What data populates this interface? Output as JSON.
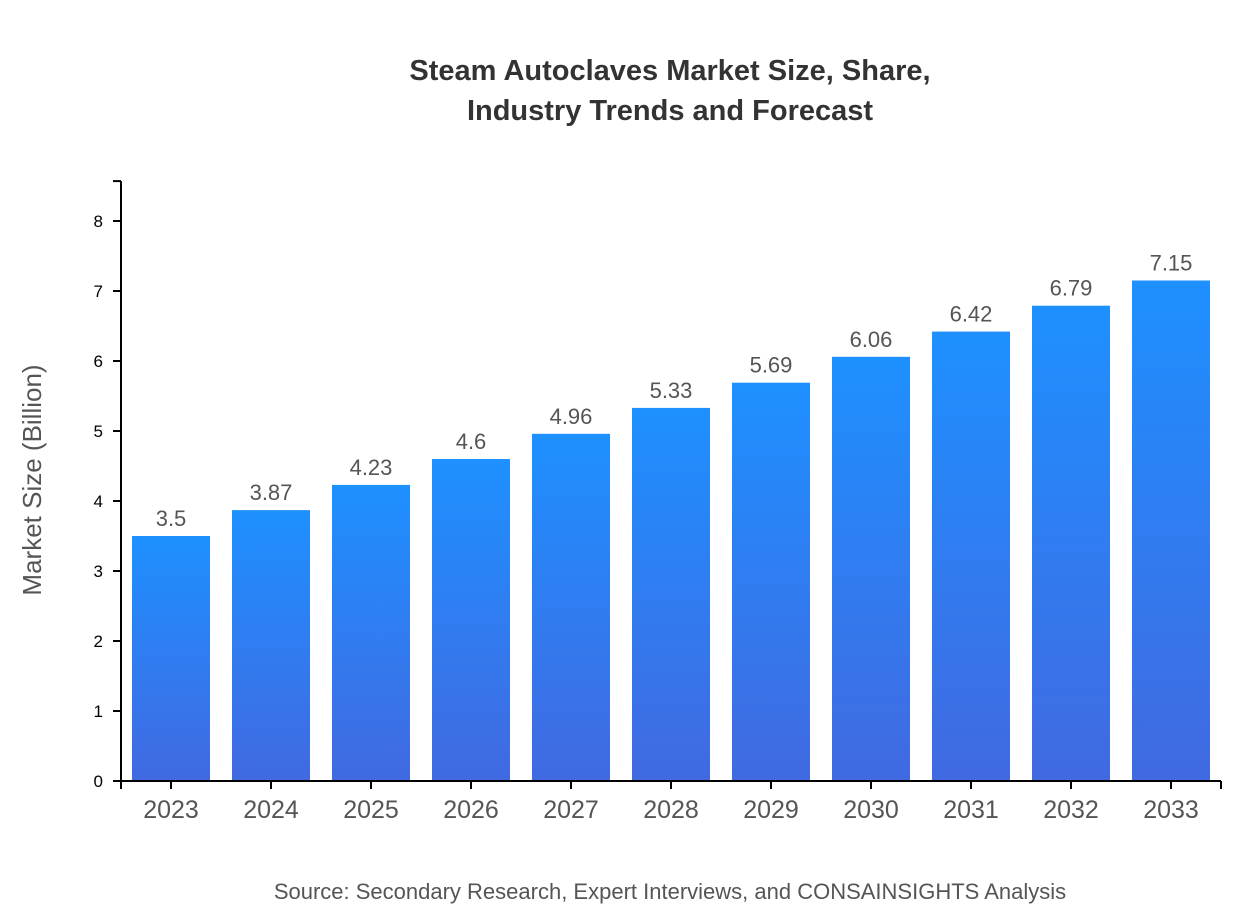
{
  "chart_data": {
    "type": "bar",
    "title_lines": [
      "Steam Autoclaves Market Size, Share,",
      "Industry Trends and Forecast"
    ],
    "xlabel": "",
    "ylabel": "Market Size (Billion)",
    "categories": [
      "2023",
      "2024",
      "2025",
      "2026",
      "2027",
      "2028",
      "2029",
      "2030",
      "2031",
      "2032",
      "2033"
    ],
    "values": [
      3.5,
      3.87,
      4.23,
      4.6,
      4.96,
      5.33,
      5.69,
      6.06,
      6.42,
      6.79,
      7.15
    ],
    "data_labels": [
      "3.5",
      "3.87",
      "4.23",
      "4.6",
      "4.96",
      "5.33",
      "5.69",
      "6.06",
      "6.42",
      "6.79",
      "7.15"
    ],
    "yticks": [
      "0",
      "1",
      "2",
      "3",
      "4",
      "5",
      "6",
      "7",
      "8"
    ],
    "ylim": [
      0,
      8.57
    ],
    "grid": false,
    "colors": {
      "bar_top": "#1e90ff",
      "bar_bottom": "#4169e1"
    },
    "source": "Source: Secondary Research, Expert Interviews, and CONSAINSIGHTS Analysis"
  }
}
